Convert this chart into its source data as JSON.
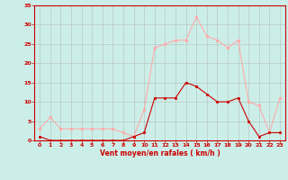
{
  "hours": [
    0,
    1,
    2,
    3,
    4,
    5,
    6,
    7,
    8,
    9,
    10,
    11,
    12,
    13,
    14,
    15,
    16,
    17,
    18,
    19,
    20,
    21,
    22,
    23
  ],
  "vent_moyen": [
    1,
    0,
    0,
    0,
    0,
    0,
    0,
    0,
    0,
    1,
    2,
    11,
    11,
    11,
    15,
    14,
    12,
    10,
    10,
    11,
    5,
    1,
    2,
    2
  ],
  "vent_rafales": [
    3,
    6,
    3,
    3,
    3,
    3,
    3,
    3,
    2,
    1,
    8,
    24,
    25,
    26,
    26,
    32,
    27,
    26,
    24,
    26,
    10,
    9,
    2,
    11
  ],
  "xlabel": "Vent moyen/en rafales ( km/h )",
  "bg_color": "#cceee8",
  "grid_color": "#aaaaaa",
  "line_color_moyen": "#cc0000",
  "line_color_rafales": "#ffaaaa",
  "ylim": [
    0,
    35
  ],
  "yticks": [
    0,
    5,
    10,
    15,
    20,
    25,
    30,
    35
  ],
  "xticks": [
    0,
    1,
    2,
    3,
    4,
    5,
    6,
    7,
    8,
    9,
    10,
    11,
    12,
    13,
    14,
    15,
    16,
    17,
    18,
    19,
    20,
    21,
    22,
    23
  ]
}
